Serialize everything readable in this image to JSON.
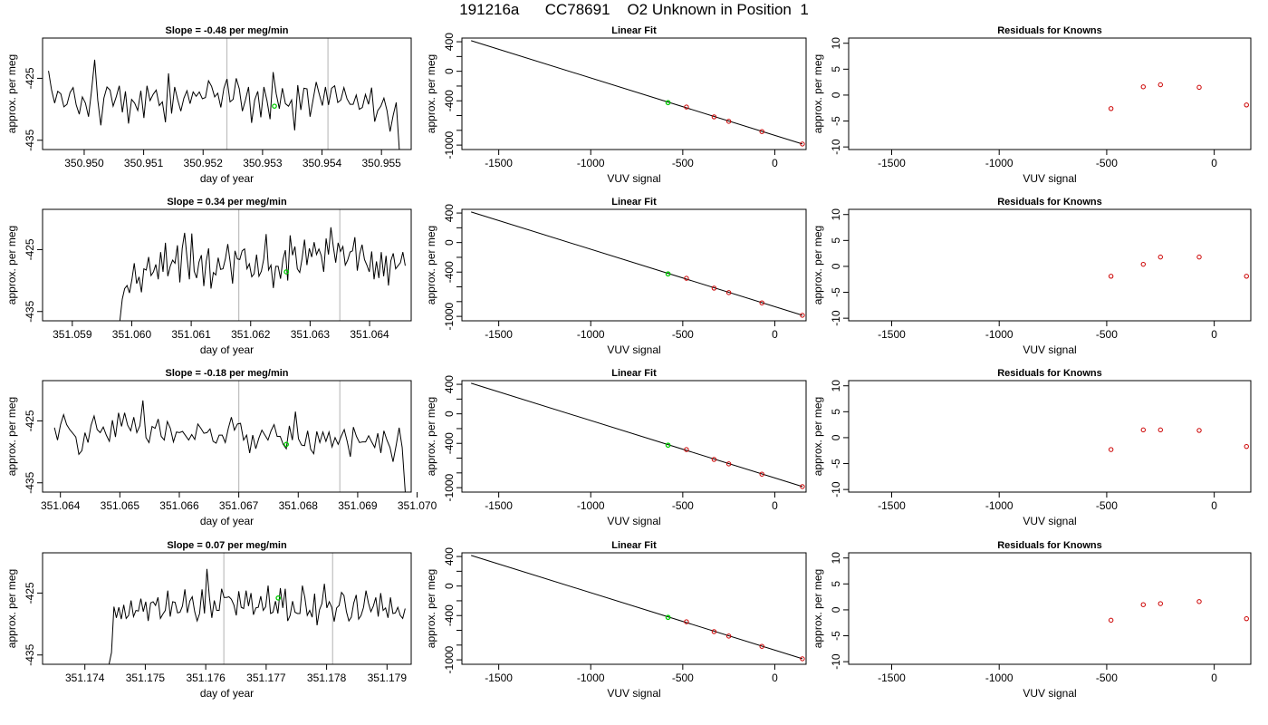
{
  "page_title": "191216a      CC78691    O2 Unknown in Position  1",
  "colors": {
    "line": "#000000",
    "marker_green": "#00cc00",
    "residual_marker": "#cc0000",
    "vertical_lines": "#bfbfbf"
  },
  "chart_data": [
    {
      "type": "line",
      "panel": "time-series",
      "row": 0,
      "title": "Slope =  -0.48  per meg/min",
      "xlabel": "day of year",
      "ylabel": "approx. per meg",
      "xlim": [
        350.9493,
        350.9555
      ],
      "ylim": [
        -436.5,
        -418.5
      ],
      "xticks": [
        350.95,
        350.951,
        350.952,
        350.953,
        350.954,
        350.955
      ],
      "xtick_labels": [
        "350.950",
        "350.951",
        "350.952",
        "350.953",
        "350.954",
        "350.955"
      ],
      "yticks": [
        -425,
        -435
      ],
      "ytick_labels": [
        "-425",
        "-435"
      ],
      "vlines": [
        350.9524,
        350.9541
      ],
      "x_start": 350.9494,
      "x_end": 350.9553,
      "green_point": [
        350.9532,
        -429.5
      ],
      "values": [
        -423.8,
        -426.9,
        -429.0,
        -427.1,
        -427.5,
        -429.6,
        -429.2,
        -427.3,
        -426.5,
        -429.3,
        -430.8,
        -428.0,
        -429.0,
        -431.2,
        -426.9,
        -422.0,
        -428.5,
        -432.6,
        -428.2,
        -426.4,
        -426.9,
        -429.5,
        -428.0,
        -426.2,
        -430.5,
        -427.1,
        -432.3,
        -428.4,
        -429.0,
        -430.2,
        -427.0,
        -431.4,
        -426.2,
        -428.6,
        -427.6,
        -426.9,
        -429.4,
        -428.8,
        -432.1,
        -424.2,
        -430.7,
        -426.4,
        -428.5,
        -430.3,
        -428.2,
        -427.0,
        -429.1,
        -427.2,
        -427.9,
        -427.2,
        -428.3,
        -428.1,
        -425.4,
        -426.3,
        -428.0,
        -427.4,
        -429.7,
        -426.6,
        -425.1,
        -428.8,
        -428.4,
        -425.0,
        -426.7,
        -430.3,
        -428.5,
        -426.4,
        -432.2,
        -428.5,
        -427.1,
        -431.3,
        -426.4,
        -428.6,
        -431.6,
        -424.0,
        -427.5,
        -429.9,
        -426.6,
        -429.1,
        -429.5,
        -428.5,
        -433.4,
        -426.1,
        -430.1,
        -426.6,
        -426.7,
        -431.2,
        -428.4,
        -425.6,
        -427.6,
        -429.4,
        -426.4,
        -429.3,
        -426.6,
        -426.2,
        -428.9,
        -428.5,
        -426.5,
        -428.3,
        -429.2,
        -429.2,
        -427.7,
        -430.0,
        -429.7,
        -427.6,
        -429.2,
        -426.5,
        -432.0,
        -430.2,
        -429.5,
        -428.2,
        -430.2,
        -433.6,
        -431.0,
        -428.9,
        -436.5
      ]
    },
    {
      "type": "line",
      "panel": "time-series",
      "row": 1,
      "title": "Slope =  0.34  per meg/min",
      "xlabel": "day of year",
      "ylabel": "approx. per meg",
      "xlim": [
        351.0585,
        351.0647
      ],
      "ylim": [
        -436.5,
        -418.5
      ],
      "xticks": [
        351.059,
        351.06,
        351.061,
        351.062,
        351.063,
        351.064
      ],
      "xtick_labels": [
        "351.059",
        "351.060",
        "351.061",
        "351.062",
        "351.063",
        "351.064"
      ],
      "yticks": [
        -425,
        -435
      ],
      "ytick_labels": [
        "-425",
        "-435"
      ],
      "vlines": [
        351.0618,
        351.0635
      ],
      "x_start": 351.0598,
      "x_end": 351.0646,
      "green_point": [
        351.0626,
        -428.6
      ],
      "values": [
        -436.5,
        -433.0,
        -431.3,
        -430.8,
        -432.0,
        -429.9,
        -427.2,
        -430.5,
        -429.4,
        -431.9,
        -428.1,
        -428.3,
        -426.2,
        -429.2,
        -428.6,
        -427.4,
        -429.8,
        -425.4,
        -428.6,
        -423.9,
        -429.3,
        -427.7,
        -426.7,
        -427.2,
        -424.3,
        -430.3,
        -424.8,
        -422.3,
        -426.3,
        -429.8,
        -422.4,
        -428.5,
        -429.6,
        -427.0,
        -425.9,
        -430.9,
        -426.9,
        -424.8,
        -431.3,
        -428.7,
        -429.1,
        -426.3,
        -428.2,
        -428.1,
        -426.5,
        -424.1,
        -427.0,
        -430.5,
        -425.2,
        -426.5,
        -426.6,
        -425.2,
        -424.9,
        -428.1,
        -427.3,
        -429.4,
        -428.9,
        -425.8,
        -429.3,
        -428.5,
        -426.5,
        -422.5,
        -428.3,
        -427.5,
        -431.2,
        -427.7,
        -427.7,
        -429.7,
        -426.6,
        -425.1,
        -430.0,
        -422.7,
        -425.9,
        -424.5,
        -428.1,
        -428.7,
        -426.4,
        -423.4,
        -427.5,
        -424.8,
        -426.2,
        -423.8,
        -425.8,
        -424.9,
        -426.0,
        -428.6,
        -423.2,
        -425.8,
        -421.4,
        -424.5,
        -427.1,
        -423.9,
        -425.3,
        -424.5,
        -427.5,
        -426.7,
        -425.4,
        -425.2,
        -423.0,
        -428.4,
        -425.7,
        -424.2,
        -426.6,
        -427.5,
        -428.6,
        -425.3,
        -429.8,
        -426.9,
        -429.6,
        -425.4,
        -429.3,
        -426.0,
        -430.8,
        -426.8,
        -425.6,
        -428.1,
        -427.6,
        -427.1,
        -425.4,
        -427.6
      ]
    },
    {
      "type": "line",
      "panel": "time-series",
      "row": 2,
      "title": "Slope =  -0.18  per meg/min",
      "xlabel": "day of year",
      "ylabel": "approx. per meg",
      "xlim": [
        351.0637,
        351.0699
      ],
      "ylim": [
        -436.5,
        -418.5
      ],
      "xticks": [
        351.064,
        351.065,
        351.066,
        351.067,
        351.068,
        351.069,
        351.07
      ],
      "xtick_labels": [
        "351.064",
        "351.065",
        "351.066",
        "351.067",
        "351.068",
        "351.069",
        "351.070"
      ],
      "yticks": [
        -425,
        -435
      ],
      "ytick_labels": [
        "-425",
        "-435"
      ],
      "vlines": [
        351.067,
        351.0687
      ],
      "x_start": 351.0639,
      "x_end": 351.0698,
      "green_point": [
        351.0678,
        -428.8
      ],
      "values": [
        -426.1,
        -428.1,
        -425.6,
        -424.0,
        -425.6,
        -426.4,
        -427.0,
        -427.6,
        -430.4,
        -429.8,
        -426.9,
        -428.5,
        -425.7,
        -424.2,
        -426.4,
        -426.9,
        -426.0,
        -427.3,
        -428.3,
        -424.9,
        -427.6,
        -423.7,
        -425.9,
        -423.7,
        -425.7,
        -426.6,
        -424.4,
        -426.9,
        -425.8,
        -421.7,
        -427.7,
        -428.5,
        -425.9,
        -426.2,
        -424.7,
        -427.5,
        -428.1,
        -425.1,
        -426.2,
        -428.4,
        -426.8,
        -426.9,
        -426.7,
        -427.4,
        -428.1,
        -427.2,
        -428.0,
        -425.5,
        -426.2,
        -427.0,
        -426.9,
        -426.3,
        -428.3,
        -428.6,
        -427.3,
        -427.3,
        -428.5,
        -426.2,
        -424.4,
        -426.5,
        -425.5,
        -425.4,
        -428.1,
        -427.3,
        -430.2,
        -427.3,
        -429.5,
        -427.8,
        -426.5,
        -427.3,
        -428.1,
        -426.6,
        -425.6,
        -427.5,
        -427.5,
        -428.8,
        -429.5,
        -425.8,
        -428.1,
        -423.5,
        -427.9,
        -428.9,
        -429.0,
        -426.6,
        -429.6,
        -430.3,
        -426.7,
        -428.5,
        -426.8,
        -428.3,
        -426.8,
        -429.2,
        -427.7,
        -428.8,
        -427.5,
        -426.4,
        -428.4,
        -430.8,
        -426.0,
        -427.5,
        -428.5,
        -428.4,
        -428.4,
        -427.4,
        -428.4,
        -429.3,
        -427.0,
        -430.2,
        -426.6,
        -428.1,
        -429.3,
        -431.6,
        -429.0,
        -426.1,
        -429.3,
        -436.5
      ]
    },
    {
      "type": "line",
      "panel": "time-series",
      "row": 3,
      "title": "Slope =  0.07  per meg/min",
      "xlabel": "day of year",
      "ylabel": "approx. per meg",
      "xlim": [
        351.1733,
        351.1794
      ],
      "ylim": [
        -436.5,
        -418.5
      ],
      "xticks": [
        351.174,
        351.175,
        351.176,
        351.177,
        351.178,
        351.179
      ],
      "xtick_labels": [
        "351.174",
        "351.175",
        "351.176",
        "351.177",
        "351.178",
        "351.179"
      ],
      "yticks": [
        -425,
        -435
      ],
      "ytick_labels": [
        "-425",
        "-435"
      ],
      "vlines": [
        351.1763,
        351.1781
      ],
      "x_start": 351.1744,
      "x_end": 351.1793,
      "green_point": [
        351.1772,
        -425.8
      ],
      "values": [
        -436.5,
        -434.6,
        -427.2,
        -429.0,
        -427.3,
        -429.2,
        -426.9,
        -429.1,
        -428.6,
        -426.2,
        -428.8,
        -427.8,
        -427.9,
        -425.9,
        -428.0,
        -426.4,
        -429.5,
        -426.6,
        -426.4,
        -427.0,
        -425.7,
        -429.1,
        -428.4,
        -427.8,
        -424.6,
        -428.8,
        -426.4,
        -426.5,
        -428.2,
        -428.1,
        -427.1,
        -424.4,
        -428.2,
        -426.3,
        -425.6,
        -428.0,
        -429.5,
        -428.3,
        -424.4,
        -428.3,
        -421.1,
        -425.6,
        -429.0,
        -426.2,
        -427.8,
        -427.8,
        -424.3,
        -425.7,
        -425.7,
        -425.6,
        -426.0,
        -426.9,
        -428.6,
        -424.7,
        -427.3,
        -427.5,
        -424.6,
        -427.1,
        -425.0,
        -428.5,
        -427.4,
        -427.3,
        -425.5,
        -427.8,
        -427.2,
        -423.8,
        -428.3,
        -428.1,
        -426.3,
        -428.3,
        -424.2,
        -427.4,
        -424.3,
        -429.5,
        -428.6,
        -426.3,
        -428.1,
        -428.3,
        -428.3,
        -423.8,
        -425.7,
        -428.6,
        -427.8,
        -428.9,
        -425.1,
        -430.2,
        -427.7,
        -426.7,
        -423.5,
        -427.4,
        -426.4,
        -427.3,
        -429.6,
        -427.4,
        -427.0,
        -424.9,
        -425.4,
        -428.0,
        -429.5,
        -428.9,
        -426.6,
        -425.3,
        -429.2,
        -428.6,
        -427.3,
        -424.6,
        -426.6,
        -428.0,
        -427.1,
        -425.7,
        -428.8,
        -425.0,
        -427.8,
        -427.4,
        -429.0,
        -425.7,
        -428.3,
        -428.2,
        -427.3,
        -428.6,
        -429.1,
        -427.5
      ]
    },
    {
      "type": "scatter",
      "panel": "linear-fit",
      "row": 0,
      "title": "Linear Fit",
      "xlabel": "VUV signal",
      "ylabel": "approx. per meg",
      "xlim": [
        -1700,
        170
      ],
      "ylim": [
        -1060,
        450
      ],
      "xticks": [
        -1500,
        -1000,
        -500,
        0
      ],
      "xtick_labels": [
        "-1500",
        "-1000",
        "-500",
        "0"
      ],
      "yticks": [
        400,
        0,
        -400,
        -1000
      ],
      "ytick_labels": [
        "400",
        "0",
        "-400",
        "-1000"
      ],
      "yticks_minor": [
        200,
        -200,
        -600,
        -800
      ],
      "fit_line": [
        [
          -1650,
          415
        ],
        [
          150,
          -985
        ]
      ],
      "points": [
        [
          -480,
          -484
        ],
        [
          -330,
          -617
        ],
        [
          -250,
          -678
        ],
        [
          -70,
          -817
        ],
        [
          150,
          -985
        ]
      ],
      "green_point": [
        -580,
        -425
      ]
    },
    {
      "type": "scatter",
      "panel": "linear-fit",
      "row": 1,
      "title": "Linear Fit",
      "xlabel": "VUV signal",
      "ylabel": "approx. per meg",
      "xlim": [
        -1700,
        170
      ],
      "ylim": [
        -1060,
        450
      ],
      "xticks": [
        -1500,
        -1000,
        -500,
        0
      ],
      "xtick_labels": [
        "-1500",
        "-1000",
        "-500",
        "0"
      ],
      "yticks": [
        400,
        0,
        -400,
        -1000
      ],
      "ytick_labels": [
        "400",
        "0",
        "-400",
        "-1000"
      ],
      "yticks_minor": [
        200,
        -200,
        -600,
        -800
      ],
      "fit_line": [
        [
          -1650,
          415
        ],
        [
          150,
          -985
        ]
      ],
      "points": [
        [
          -480,
          -484
        ],
        [
          -330,
          -617
        ],
        [
          -250,
          -678
        ],
        [
          -70,
          -817
        ],
        [
          150,
          -985
        ]
      ],
      "green_point": [
        -580,
        -425
      ]
    },
    {
      "type": "scatter",
      "panel": "linear-fit",
      "row": 2,
      "title": "Linear Fit",
      "xlabel": "VUV signal",
      "ylabel": "approx. per meg",
      "xlim": [
        -1700,
        170
      ],
      "ylim": [
        -1060,
        450
      ],
      "xticks": [
        -1500,
        -1000,
        -500,
        0
      ],
      "xtick_labels": [
        "-1500",
        "-1000",
        "-500",
        "0"
      ],
      "yticks": [
        400,
        0,
        -400,
        -1000
      ],
      "ytick_labels": [
        "400",
        "0",
        "-400",
        "-1000"
      ],
      "yticks_minor": [
        200,
        -200,
        -600,
        -800
      ],
      "fit_line": [
        [
          -1650,
          415
        ],
        [
          150,
          -985
        ]
      ],
      "points": [
        [
          -480,
          -484
        ],
        [
          -330,
          -617
        ],
        [
          -250,
          -678
        ],
        [
          -70,
          -817
        ],
        [
          150,
          -985
        ]
      ],
      "green_point": [
        -580,
        -425
      ]
    },
    {
      "type": "scatter",
      "panel": "linear-fit",
      "row": 3,
      "title": "Linear Fit",
      "xlabel": "VUV signal",
      "ylabel": "approx. per meg",
      "xlim": [
        -1700,
        170
      ],
      "ylim": [
        -1060,
        450
      ],
      "xticks": [
        -1500,
        -1000,
        -500,
        0
      ],
      "xtick_labels": [
        "-1500",
        "-1000",
        "-500",
        "0"
      ],
      "yticks": [
        400,
        0,
        -400,
        -1000
      ],
      "ytick_labels": [
        "400",
        "0",
        "-400",
        "-1000"
      ],
      "yticks_minor": [
        200,
        -200,
        -600,
        -800
      ],
      "fit_line": [
        [
          -1650,
          415
        ],
        [
          150,
          -985
        ]
      ],
      "points": [
        [
          -480,
          -484
        ],
        [
          -330,
          -617
        ],
        [
          -250,
          -678
        ],
        [
          -70,
          -817
        ],
        [
          150,
          -985
        ]
      ],
      "green_point": [
        -580,
        -425
      ]
    },
    {
      "type": "scatter",
      "panel": "residuals",
      "row": 0,
      "title": "Residuals for Knowns",
      "xlabel": "VUV signal",
      "ylabel": "approx. per meg",
      "xlim": [
        -1700,
        170
      ],
      "ylim": [
        -10.5,
        11
      ],
      "xticks": [
        -1500,
        -1000,
        -500,
        0
      ],
      "xtick_labels": [
        "-1500",
        "-1000",
        "-500",
        "0"
      ],
      "yticks": [
        10,
        5,
        0,
        -5,
        -10
      ],
      "ytick_labels": [
        "10",
        "5",
        "0",
        "-5",
        "-10"
      ],
      "points": [
        [
          -480,
          -2.6
        ],
        [
          -330,
          1.6
        ],
        [
          -250,
          2.0
        ],
        [
          -70,
          1.5
        ],
        [
          150,
          -1.9
        ]
      ]
    },
    {
      "type": "scatter",
      "panel": "residuals",
      "row": 1,
      "title": "Residuals for Knowns",
      "xlabel": "VUV signal",
      "ylabel": "approx. per meg",
      "xlim": [
        -1700,
        170
      ],
      "ylim": [
        -10.5,
        11
      ],
      "xticks": [
        -1500,
        -1000,
        -500,
        0
      ],
      "xtick_labels": [
        "-1500",
        "-1000",
        "-500",
        "0"
      ],
      "yticks": [
        10,
        5,
        0,
        -5,
        -10
      ],
      "ytick_labels": [
        "10",
        "5",
        "0",
        "-5",
        "-10"
      ],
      "points": [
        [
          -480,
          -1.9
        ],
        [
          -330,
          0.4
        ],
        [
          -250,
          1.8
        ],
        [
          -70,
          1.8
        ],
        [
          150,
          -1.9
        ]
      ]
    },
    {
      "type": "scatter",
      "panel": "residuals",
      "row": 2,
      "title": "Residuals for Knowns",
      "xlabel": "VUV signal",
      "ylabel": "approx. per meg",
      "xlim": [
        -1700,
        170
      ],
      "ylim": [
        -10.5,
        11
      ],
      "xticks": [
        -1500,
        -1000,
        -500,
        0
      ],
      "xtick_labels": [
        "-1500",
        "-1000",
        "-500",
        "0"
      ],
      "yticks": [
        10,
        5,
        0,
        -5,
        -10
      ],
      "ytick_labels": [
        "10",
        "5",
        "0",
        "-5",
        "-10"
      ],
      "points": [
        [
          -480,
          -2.3
        ],
        [
          -330,
          1.5
        ],
        [
          -250,
          1.5
        ],
        [
          -70,
          1.4
        ],
        [
          150,
          -1.7
        ]
      ]
    },
    {
      "type": "scatter",
      "panel": "residuals",
      "row": 3,
      "title": "Residuals for Knowns",
      "xlabel": "VUV signal",
      "ylabel": "approx. per meg",
      "xlim": [
        -1700,
        170
      ],
      "ylim": [
        -10.5,
        11
      ],
      "xticks": [
        -1500,
        -1000,
        -500,
        0
      ],
      "xtick_labels": [
        "-1500",
        "-1000",
        "-500",
        "0"
      ],
      "yticks": [
        10,
        5,
        0,
        -5,
        -10
      ],
      "ytick_labels": [
        "10",
        "5",
        "0",
        "-5",
        "-10"
      ],
      "points": [
        [
          -480,
          -2.0
        ],
        [
          -330,
          1.0
        ],
        [
          -250,
          1.2
        ],
        [
          -70,
          1.6
        ],
        [
          150,
          -1.7
        ]
      ]
    }
  ]
}
